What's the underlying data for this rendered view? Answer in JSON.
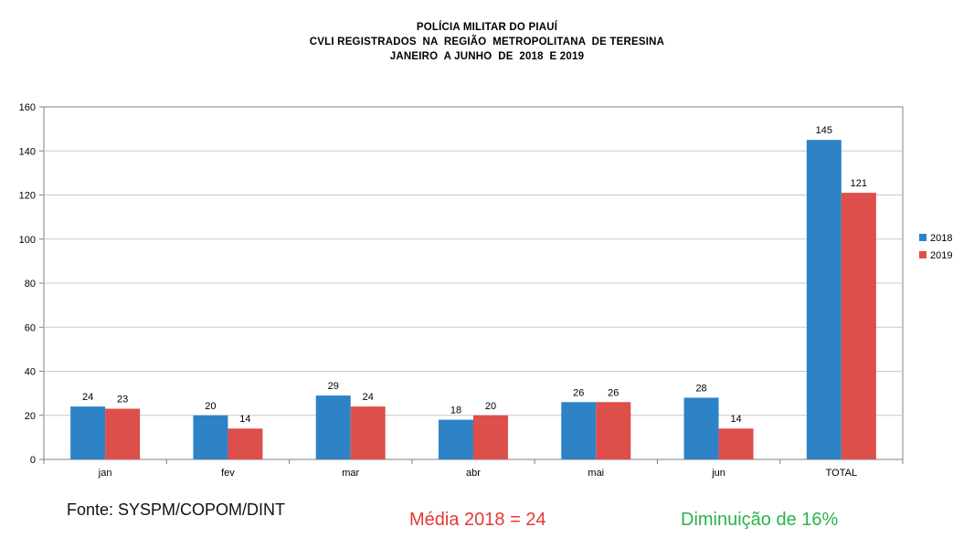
{
  "title_lines": [
    "POLÍCIA MILITAR DO PIAUÍ",
    "CVLI REGISTRADOS  NA  REGIÃO  METROPOLITANA  DE TERESINA",
    "JANEIRO  A JUNHO  DE  2018  E 2019"
  ],
  "footer": {
    "source": "Fonte: SYSPM/COPOM/DINT",
    "mean": "Média 2018 = 24",
    "decrease": "Diminuição de 16%"
  },
  "colors": {
    "series_2018": "#2e83c7",
    "series_2019": "#dc4f4b",
    "mean_text": "#e53935",
    "decrease_text": "#2bb24c",
    "grid": "#c8c8c8",
    "axis": "#808080"
  },
  "chart_data": {
    "type": "bar",
    "categories": [
      "jan",
      "fev",
      "mar",
      "abr",
      "mai",
      "jun",
      "TOTAL"
    ],
    "series": [
      {
        "name": "2018",
        "values": [
          24,
          20,
          29,
          18,
          26,
          28,
          145
        ]
      },
      {
        "name": "2019",
        "values": [
          23,
          14,
          24,
          20,
          26,
          14,
          121
        ]
      }
    ],
    "yticks": [
      0,
      20,
      40,
      60,
      80,
      100,
      120,
      140,
      160
    ],
    "ylim": [
      0,
      160
    ],
    "grid": true,
    "legend_position": "right",
    "data_labels": true
  }
}
